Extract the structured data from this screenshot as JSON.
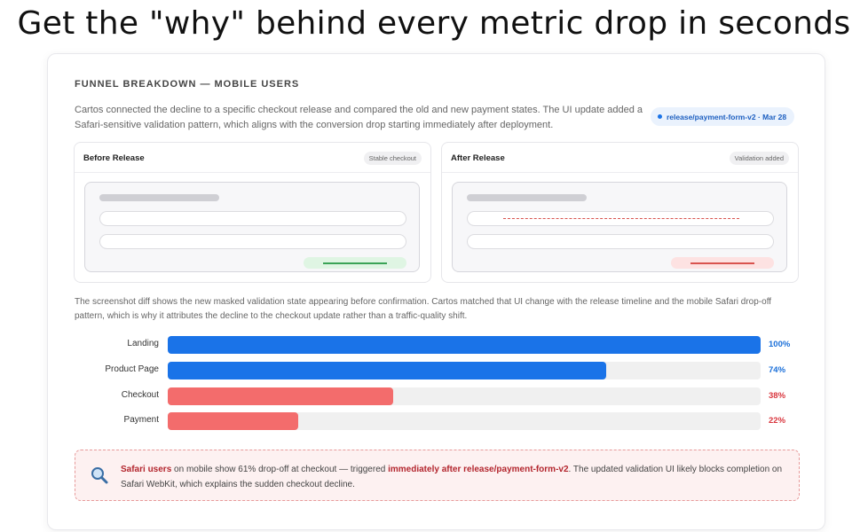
{
  "headline": "Get the \"why\" behind every metric drop in seconds",
  "section_title": "FUNNEL BREAKDOWN — MOBILE USERS",
  "intro": "Cartos connected the decline to a specific checkout release and compared the old and new payment states. The UI update added a Safari-sensitive validation pattern, which aligns with the conversion drop starting immediately after deployment.",
  "release_pill": "release/payment-form-v2 · Mar 28",
  "panels": {
    "before": {
      "title": "Before Release",
      "badge": "Stable checkout"
    },
    "after": {
      "title": "After Release",
      "badge": "Validation added"
    }
  },
  "diff_text": "The screenshot diff shows the new masked validation state appearing before confirmation. Cartos matched that UI change with the release timeline and the mobile Safari drop-off pattern, which is why it attributes the decline to the checkout update rather than a traffic-quality shift.",
  "funnel": [
    {
      "label": "Landing",
      "value": 100,
      "pct": "100%",
      "color": "#1a73e8",
      "pct_color": "#1a6fd9"
    },
    {
      "label": "Product Page",
      "value": 74,
      "pct": "74%",
      "color": "#1a73e8",
      "pct_color": "#1a6fd9"
    },
    {
      "label": "Checkout",
      "value": 38,
      "pct": "38%",
      "color": "#f36c6c",
      "pct_color": "#d9363e"
    },
    {
      "label": "Payment",
      "value": 22,
      "pct": "22%",
      "color": "#f36c6c",
      "pct_color": "#d9363e"
    }
  ],
  "alert": {
    "icon": "magnifier-icon",
    "hl1": "Safari users",
    "t1": " on mobile show 61% drop-off at checkout — triggered ",
    "hl2": "immediately after release/payment-form-v2",
    "t2": ". The updated validation UI likely blocks completion on Safari WebKit, which explains the sudden checkout decline."
  }
}
